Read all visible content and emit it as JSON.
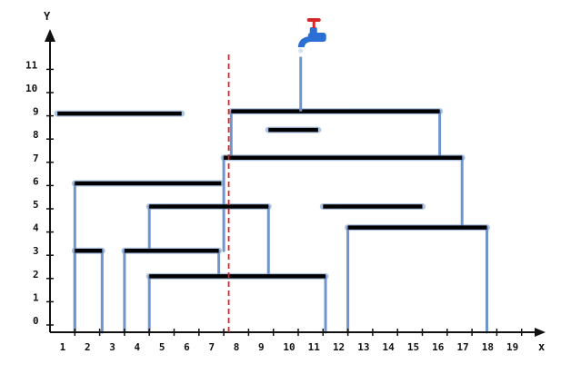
{
  "axes": {
    "x_label": "x",
    "y_label": "Y",
    "x_ticks": [
      "1",
      "2",
      "3",
      "4",
      "5",
      "6",
      "7",
      "8",
      "9",
      "10",
      "11",
      "12",
      "13",
      "14",
      "15",
      "16",
      "17",
      "18",
      "19"
    ],
    "y_ticks": [
      "0",
      "1",
      "2",
      "3",
      "4",
      "5",
      "6",
      "7",
      "8",
      "9",
      "10",
      "11"
    ],
    "x_range": [
      0,
      20
    ],
    "y_range": [
      -0.5,
      12
    ]
  },
  "divider_x": 7.2,
  "faucet": {
    "x": 10.1,
    "stream_top": 11.5,
    "stream_bottom": 9
  },
  "platforms": [
    {
      "x1": 0.3,
      "x2": 5.3,
      "y": 8.9
    },
    {
      "x1": 8.8,
      "x2": 10.8,
      "y": 8.2
    },
    {
      "x1": 7.3,
      "x2": 15.7,
      "y": 9.0
    },
    {
      "x1": 7.0,
      "x2": 16.6,
      "y": 7.0
    },
    {
      "x1": 1.0,
      "x2": 6.9,
      "y": 5.9
    },
    {
      "x1": 4.0,
      "x2": 8.8,
      "y": 4.9
    },
    {
      "x1": 11.0,
      "x2": 15.0,
      "y": 4.9
    },
    {
      "x1": 12.0,
      "x2": 17.6,
      "y": 4.0
    },
    {
      "x1": 1.0,
      "x2": 2.1,
      "y": 3.0
    },
    {
      "x1": 3.0,
      "x2": 6.8,
      "y": 3.0
    },
    {
      "x1": 4.0,
      "x2": 11.1,
      "y": 1.9
    }
  ],
  "walls": [
    {
      "x": 1.0,
      "y1": -0.5,
      "y2": 5.9
    },
    {
      "x": 1.0,
      "y1": -0.5,
      "y2": 3.0
    },
    {
      "x": 2.1,
      "y1": -0.5,
      "y2": 3.0
    },
    {
      "x": 3.0,
      "y1": -0.5,
      "y2": 3.0
    },
    {
      "x": 6.8,
      "y1": 1.9,
      "y2": 3.0
    },
    {
      "x": 4.0,
      "y1": 3.0,
      "y2": 4.9
    },
    {
      "x": 8.8,
      "y1": 1.9,
      "y2": 4.9
    },
    {
      "x": 4.0,
      "y1": -0.5,
      "y2": 1.9
    },
    {
      "x": 11.1,
      "y1": -0.5,
      "y2": 1.9
    },
    {
      "x": 7.0,
      "y1": 3.0,
      "y2": 7.0
    },
    {
      "x": 16.6,
      "y1": 4.0,
      "y2": 7.0
    },
    {
      "x": 7.3,
      "y1": 7.0,
      "y2": 9.0
    },
    {
      "x": 15.7,
      "y1": 7.0,
      "y2": 9.0
    },
    {
      "x": 12.0,
      "y1": -0.5,
      "y2": 4.0
    },
    {
      "x": 17.6,
      "y1": -0.5,
      "y2": 4.0
    }
  ],
  "colors": {
    "axis": "#111111",
    "platform": "#000000",
    "wall": "#6f95cc",
    "divider": "#e02020",
    "faucet_body": "#2a6fd6",
    "faucet_handle": "#d62828"
  }
}
